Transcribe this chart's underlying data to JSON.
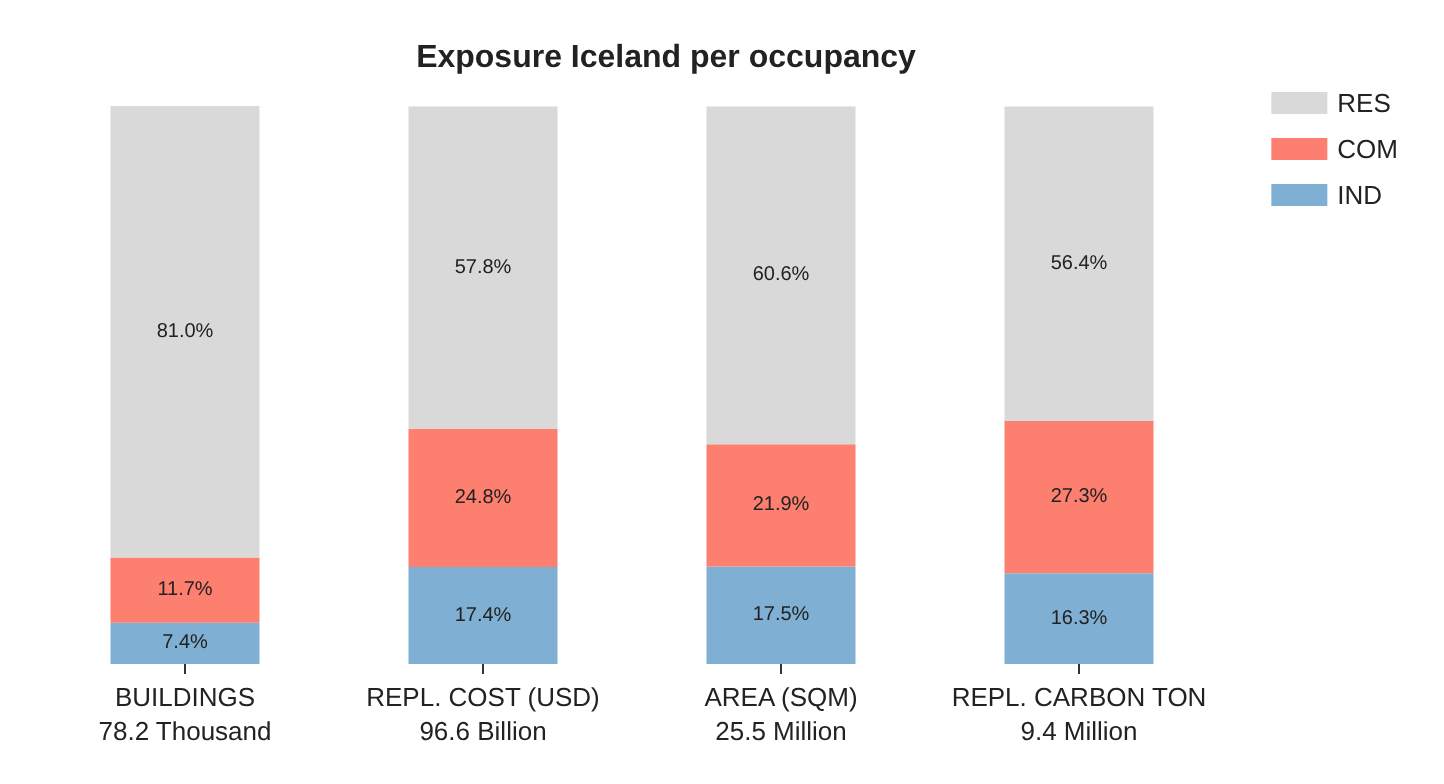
{
  "chart_data": {
    "type": "bar",
    "title": "Exposure Iceland per occupancy",
    "categories": [
      "BUILDINGS\n78.2 Thousand",
      "REPL. COST (USD)\n96.6 Billion",
      "AREA (SQM)\n25.5 Million",
      "REPL. CARBON TON\n9.4 Million"
    ],
    "stacked": true,
    "legend": "top right",
    "grid": false,
    "tick_labels": "x",
    "series": [
      {
        "name": "IND",
        "color": "#7fb0d3",
        "values": [
          7.4,
          17.4,
          17.5,
          16.3
        ],
        "value_labels": [
          "7.4%",
          "17.4%",
          "17.5%",
          "16.3%"
        ]
      },
      {
        "name": "COM",
        "color": "#fc7f6f",
        "values": [
          11.7,
          24.8,
          21.9,
          27.3
        ],
        "value_labels": [
          "11.7%",
          "24.8%",
          "21.9%",
          "27.3%"
        ]
      },
      {
        "name": "RES",
        "color": "#d9d9d9",
        "values": [
          81.0,
          57.8,
          60.6,
          56.4
        ],
        "value_labels": [
          "81.0%",
          "57.8%",
          "60.6%",
          "56.4%"
        ]
      }
    ]
  }
}
